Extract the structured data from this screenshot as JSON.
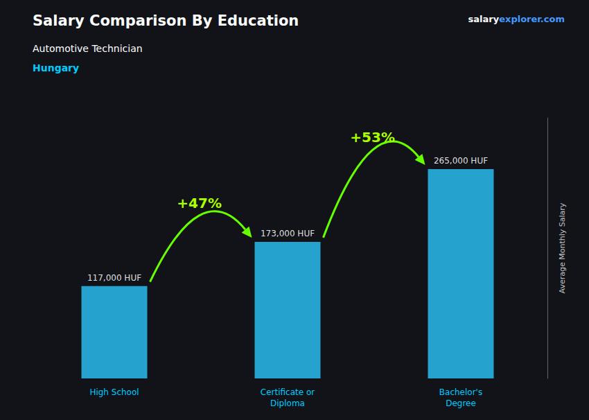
{
  "chart_data": {
    "type": "bar",
    "title": "Salary Comparison By Education",
    "subtitle": "Automotive Technician",
    "ylabel": "Average Monthly Salary",
    "categories": [
      "High School",
      "Certificate or\nDiploma",
      "Bachelor's\nDegree"
    ],
    "values": [
      117000,
      173000,
      265000
    ],
    "value_labels": [
      "117,000 HUF",
      "173,000 HUF",
      "265,000 HUF"
    ],
    "data_labels": true,
    "color": "#29b6e8",
    "ylim": [
      0,
      330000
    ],
    "tick_labels": "x",
    "grid": false,
    "annotations": [
      {
        "text": "Hungary"
      },
      {
        "text": "salary"
      },
      {
        "text": "explorer.com"
      },
      {
        "text": "+47%",
        "from": "High School",
        "to": "Certificate or\nDiploma"
      },
      {
        "text": "+53%",
        "from": "Certificate or\nDiploma",
        "to": "Bachelor's\nDegree"
      }
    ]
  }
}
